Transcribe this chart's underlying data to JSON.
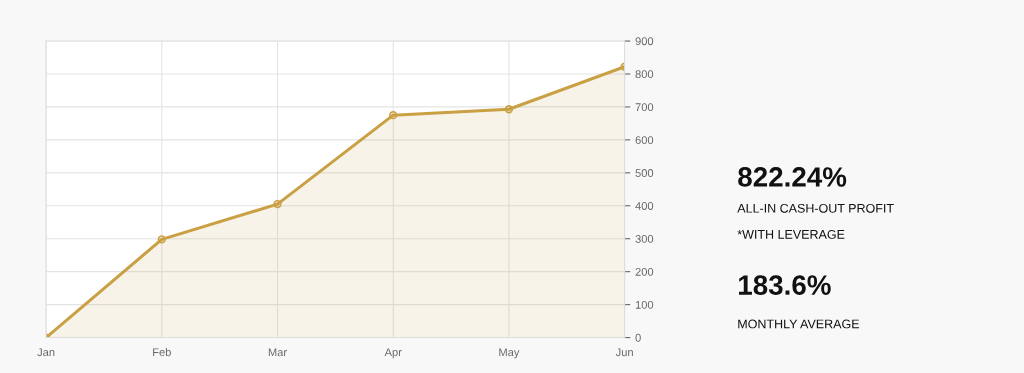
{
  "chart_data": [
    {
      "type": "area",
      "categories": [
        "Jan",
        "Feb",
        "Mar",
        "Apr",
        "May",
        "Jun"
      ],
      "series": [
        {
          "color": "#c9a043",
          "values": [
            0,
            298,
            405,
            675,
            693,
            822
          ]
        }
      ],
      "ylim": [
        0,
        900
      ],
      "yticks": [
        0,
        100,
        200,
        300,
        400,
        500,
        600,
        700,
        800,
        900
      ],
      "grid": true,
      "marker": "circle",
      "line_style": "solid"
    },
    {
      "type": "other",
      "annotations": [
        "822.24%",
        "ALL-IN CASH-OUT PROFIT",
        "*WITH LEVERAGE",
        "183.6%",
        "MONTHLY AVERAGE"
      ]
    }
  ]
}
